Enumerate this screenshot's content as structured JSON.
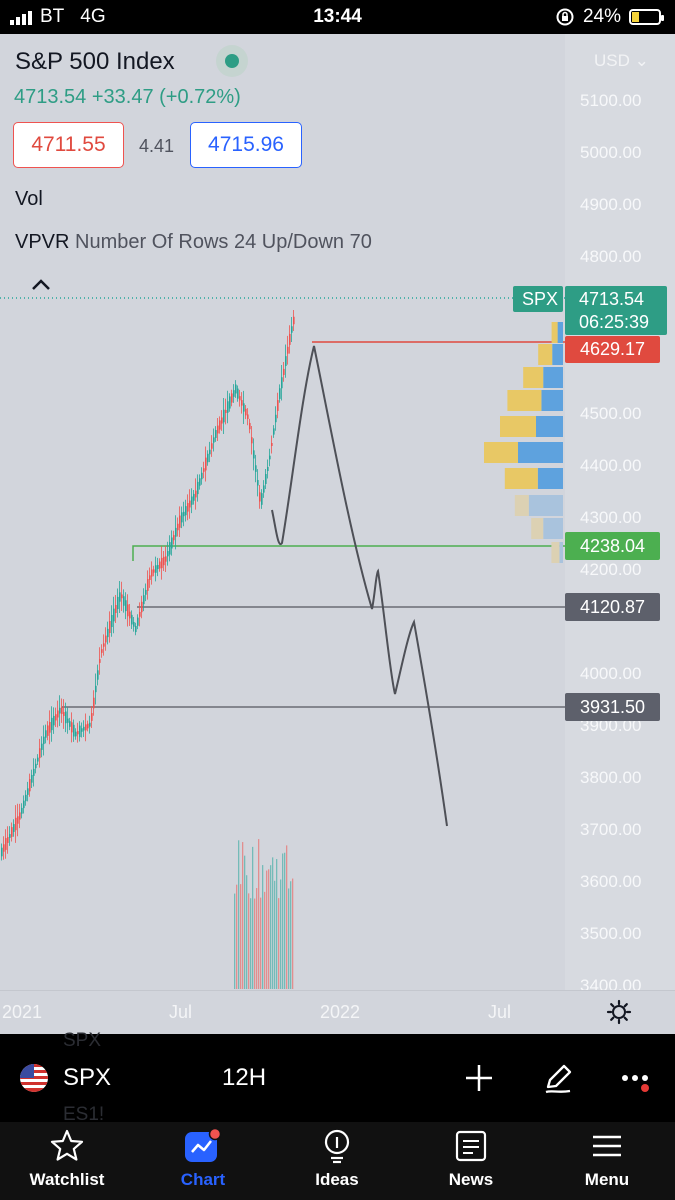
{
  "status_bar": {
    "carrier": "BT",
    "network": "4G",
    "time": "13:44",
    "battery": "24%",
    "battery_level": 0.24
  },
  "chart": {
    "title": "S&P 500 Index",
    "quote": "4713.54 +33.47 (+0.72%)",
    "bid": "4711.55",
    "spread": "4.41",
    "ask": "4715.96",
    "vol_label": "Vol",
    "indicator_name": "VPVR",
    "indicator_params": "Number Of Rows 24 Up/Down 70",
    "currency": "USD",
    "y_axis_labels": [
      "5100.00",
      "5000.00",
      "4900.00",
      "4800.00",
      "4500.00",
      "4400.00",
      "4300.00",
      "4200.00",
      "4000.00",
      "3900.00",
      "3800.00",
      "3700.00",
      "3600.00",
      "3500.00",
      "3400.00"
    ],
    "x_axis_labels": [
      "2021",
      "Jul",
      "2022",
      "Jul"
    ],
    "tags": {
      "symbol": "SPX",
      "last_price": "4713.54",
      "countdown": "06:25:39",
      "red_level": "4629.17",
      "green_level": "4238.04",
      "grey_level_1": "4120.87",
      "grey_level_2": "3931.50"
    },
    "colors": {
      "up": "#26a69a",
      "down": "#ef5350",
      "red_line": "#e04a3f",
      "green_line": "#4caf50",
      "grey_tag": "#5d606b",
      "accent": "#2962ff"
    }
  },
  "toolbar": {
    "symbol": "SPX",
    "interval": "12H",
    "ghost_top": "SPX",
    "ghost_bottom": "ES1!"
  },
  "tabs": [
    {
      "label": "Watchlist",
      "icon": "star-icon"
    },
    {
      "label": "Chart",
      "icon": "chart-icon"
    },
    {
      "label": "Ideas",
      "icon": "ideas-icon"
    },
    {
      "label": "News",
      "icon": "news-icon"
    },
    {
      "label": "Menu",
      "icon": "menu-icon"
    }
  ]
}
